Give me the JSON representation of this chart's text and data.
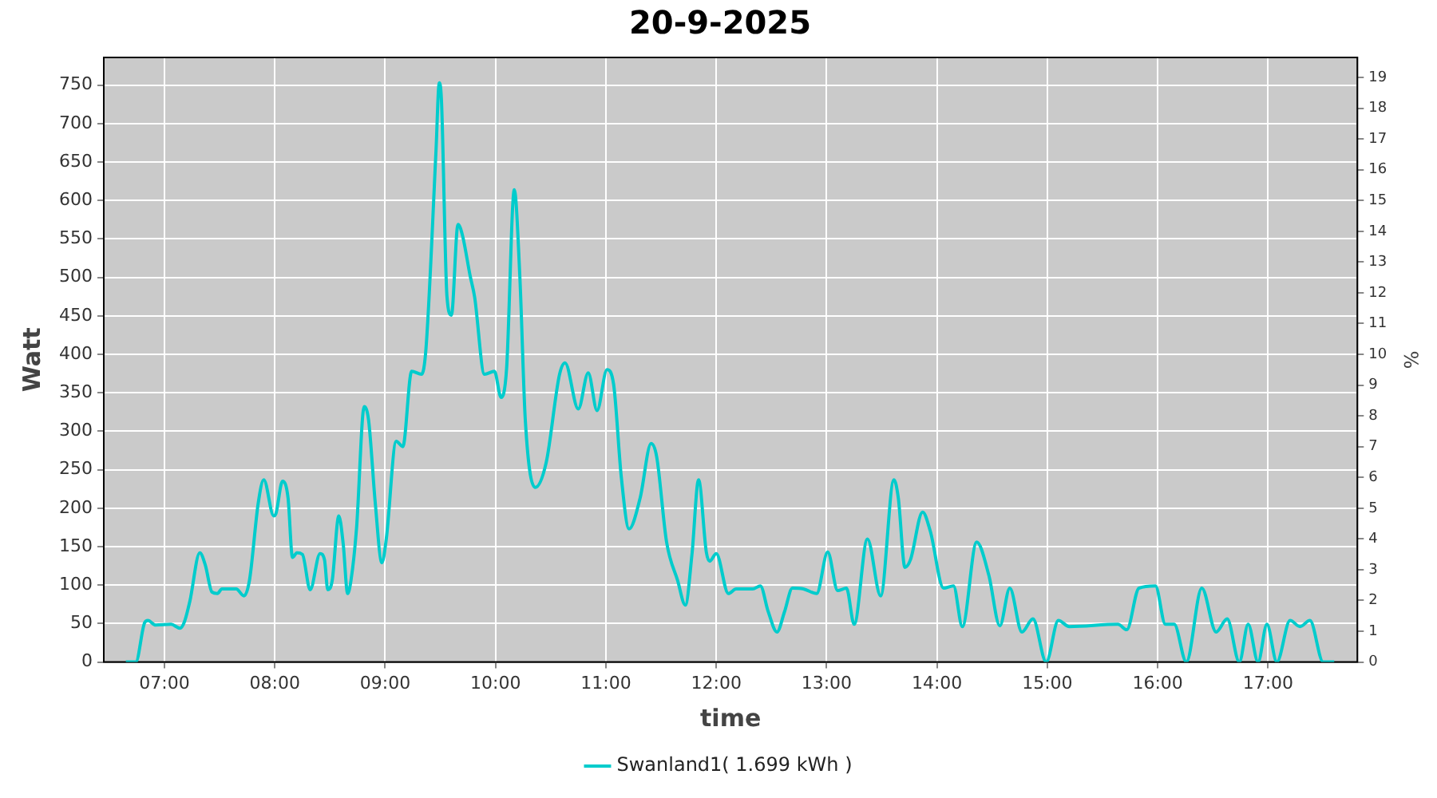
{
  "chart_data": {
    "type": "line",
    "title": "20-9-2025",
    "xlabel": "time",
    "ylabel": "Watt",
    "y2label": "%",
    "x": [
      6.65,
      6.74,
      6.82,
      6.85,
      6.92,
      7.06,
      7.14,
      7.18,
      7.23,
      7.32,
      7.37,
      7.43,
      7.48,
      7.52,
      7.65,
      7.72,
      7.77,
      7.85,
      7.9,
      7.99,
      8.01,
      8.07,
      8.12,
      8.16,
      8.2,
      8.25,
      8.32,
      8.41,
      8.45,
      8.48,
      8.52,
      8.58,
      8.62,
      8.66,
      8.69,
      8.74,
      8.81,
      8.85,
      8.91,
      8.97,
      9.01,
      9.1,
      9.16,
      9.24,
      9.33,
      9.37,
      9.46,
      9.49,
      9.51,
      9.56,
      9.6,
      9.66,
      9.7,
      9.77,
      9.81,
      9.9,
      9.99,
      10.05,
      10.1,
      10.17,
      10.22,
      10.27,
      10.36,
      10.46,
      10.58,
      10.63,
      10.75,
      10.84,
      10.92,
      11.01,
      11.07,
      11.14,
      11.21,
      11.31,
      11.41,
      11.46,
      11.55,
      11.65,
      11.72,
      11.78,
      11.84,
      11.91,
      11.94,
      12.0,
      12.11,
      12.18,
      12.33,
      12.4,
      12.47,
      12.55,
      12.62,
      12.69,
      12.79,
      12.91,
      13.01,
      13.1,
      13.18,
      13.25,
      13.37,
      13.49,
      13.61,
      13.65,
      13.71,
      13.76,
      13.87,
      13.94,
      14.06,
      14.15,
      14.23,
      14.36,
      14.47,
      14.57,
      14.66,
      14.77,
      14.87,
      14.99,
      15.1,
      15.2,
      15.64,
      15.72,
      15.83,
      15.98,
      16.07,
      16.15,
      16.26,
      16.4,
      16.53,
      16.63,
      16.74,
      16.82,
      16.91,
      16.99,
      17.08,
      17.2,
      17.29,
      17.38,
      17.5,
      17.6
    ],
    "series": [
      {
        "name": "Swanland1( 1.699 kWh )",
        "color": "#00cccc",
        "values": [
          0,
          0,
          51,
          54,
          48,
          49,
          44,
          52,
          79,
          142,
          126,
          91,
          89,
          95,
          95,
          86,
          106,
          207,
          237,
          190,
          193,
          235,
          213,
          136,
          142,
          140,
          94,
          141,
          133,
          94,
          106,
          190,
          153,
          89,
          106,
          173,
          332,
          314,
          207,
          129,
          160,
          287,
          280,
          378,
          374,
          408,
          663,
          753,
          730,
          475,
          451,
          569,
          555,
          502,
          475,
          374,
          378,
          344,
          381,
          614,
          502,
          314,
          227,
          260,
          374,
          389,
          329,
          376,
          327,
          380,
          361,
          240,
          173,
          213,
          284,
          267,
          156,
          106,
          74,
          140,
          237,
          143,
          131,
          141,
          89,
          95,
          95,
          99,
          66,
          39,
          66,
          96,
          95,
          89,
          143,
          93,
          96,
          49,
          160,
          86,
          237,
          213,
          123,
          133,
          195,
          170,
          96,
          99,
          46,
          156,
          113,
          47,
          96,
          39,
          56,
          0,
          54,
          46,
          49,
          42,
          96,
          99,
          49,
          49,
          0,
          96,
          39,
          56,
          0,
          49,
          0,
          49,
          0,
          54,
          46,
          54,
          0,
          0
        ]
      }
    ],
    "xlim": [
      6.45,
      17.81
    ],
    "xticks": [
      {
        "value": 7,
        "label": "07:00"
      },
      {
        "value": 8,
        "label": "08:00"
      },
      {
        "value": 9,
        "label": "09:00"
      },
      {
        "value": 10,
        "label": "10:00"
      },
      {
        "value": 11,
        "label": "11:00"
      },
      {
        "value": 12,
        "label": "12:00"
      },
      {
        "value": 13,
        "label": "13:00"
      },
      {
        "value": 14,
        "label": "14:00"
      },
      {
        "value": 15,
        "label": "15:00"
      },
      {
        "value": 16,
        "label": "16:00"
      },
      {
        "value": 17,
        "label": "17:00"
      }
    ],
    "ylim": [
      0,
      786
    ],
    "yticks": [
      0,
      50,
      100,
      150,
      200,
      250,
      300,
      350,
      400,
      450,
      500,
      550,
      600,
      650,
      700,
      750
    ],
    "y2lim": [
      0,
      19.65
    ],
    "y2ticks": [
      0,
      1,
      2,
      3,
      4,
      5,
      6,
      7,
      8,
      9,
      10,
      11,
      12,
      13,
      14,
      15,
      16,
      17,
      18,
      19
    ],
    "grid": true,
    "legend": "bottom",
    "marker": "none",
    "line_style": "solid"
  }
}
